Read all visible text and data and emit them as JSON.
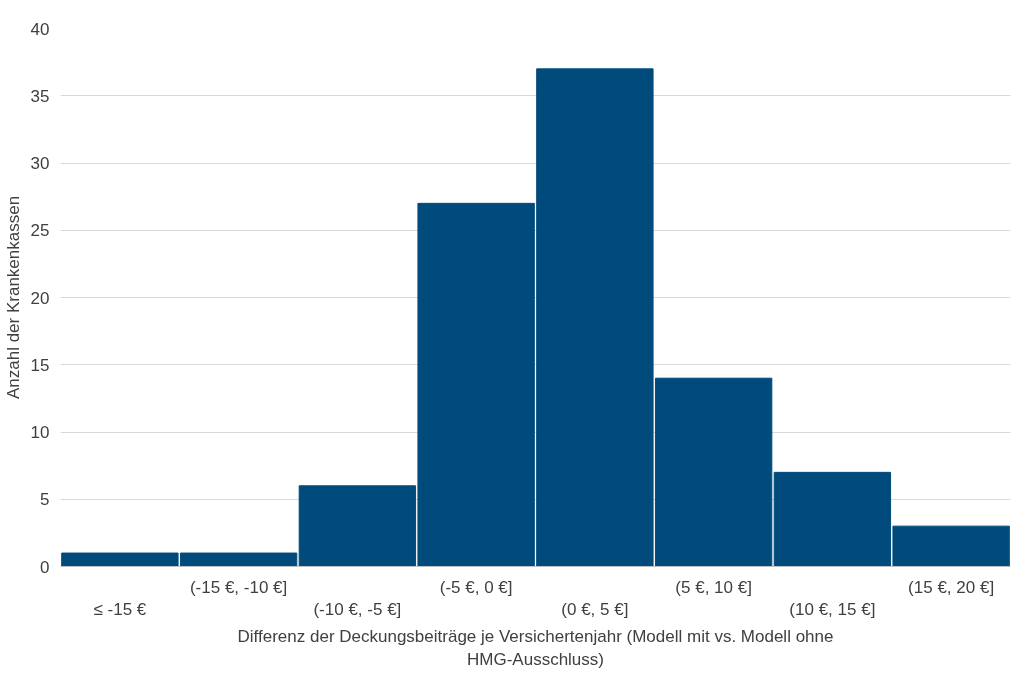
{
  "chart_data": {
    "type": "bar",
    "categories": [
      "≤ -15 €",
      "(-15 €, -10 €]",
      "(-10 €, -5 €]",
      "(-5 €, 0 €]",
      "(0 €, 5 €]",
      "(5 €, 10 €]",
      "(10 €, 15 €]",
      "(15 €, 20 €]"
    ],
    "values": [
      1,
      1,
      6,
      27,
      37,
      14,
      7,
      3
    ],
    "color": "#004b7c",
    "xlabel": "Differenz der Deckungsbeiträge je Versichertenjahr (Modell mit vs. Modell ohne\nHMG-Ausschluss)",
    "ylabel": "Anzahl der Krankenkassen",
    "ylim": [
      0,
      40
    ],
    "yticks": [
      0,
      5,
      10,
      15,
      20,
      25,
      30,
      35,
      40
    ],
    "grid": "y"
  }
}
